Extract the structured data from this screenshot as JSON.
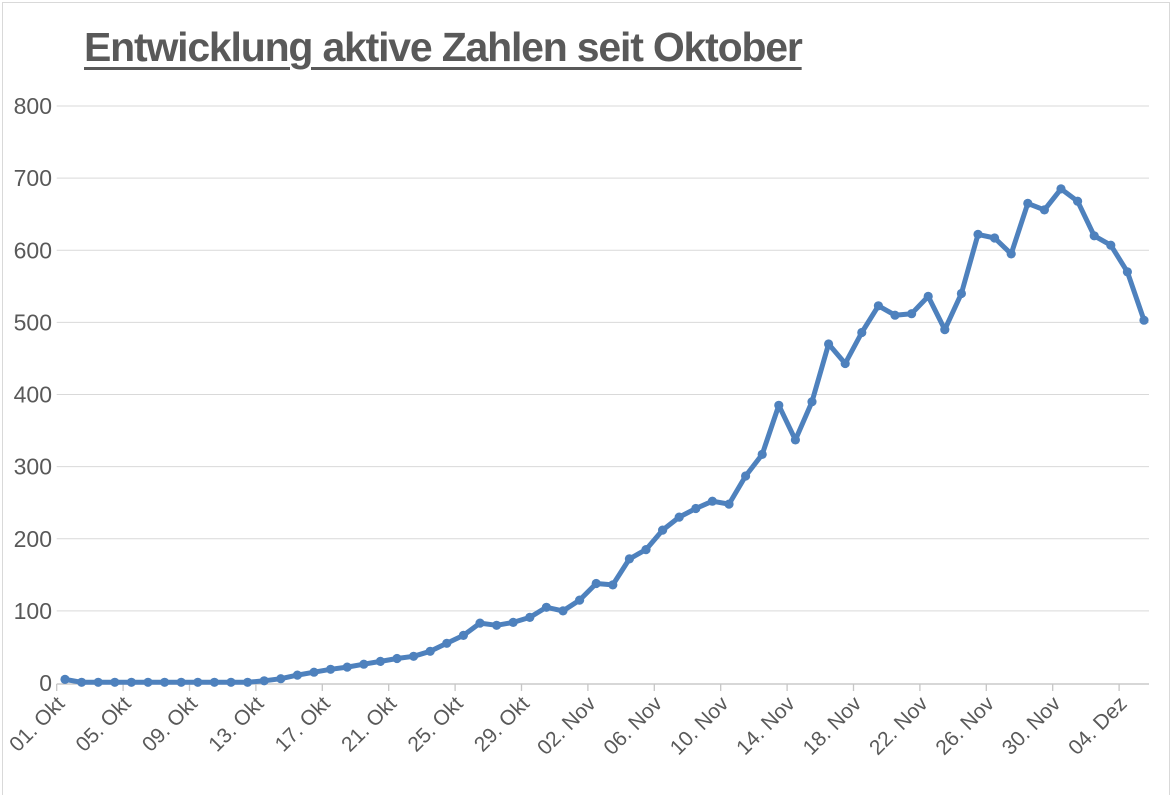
{
  "window": {
    "background": "#ffffff",
    "border_color": "#d9d9d9"
  },
  "chart_data": {
    "type": "line",
    "title": "Entwicklung aktive Zahlen seit Oktober",
    "legend": "none",
    "grid": "horizontal",
    "xlabel": "",
    "ylabel": "",
    "ylim": [
      0,
      800
    ],
    "y_ticks": [
      0,
      100,
      200,
      300,
      400,
      500,
      600,
      700,
      800
    ],
    "x_tick_labels": [
      "01. Okt",
      "05. Okt",
      "09. Okt",
      "13. Okt",
      "17. Okt",
      "21. Okt",
      "25. Okt",
      "29. Okt",
      "02. Nov",
      "06. Nov",
      "10. Nov",
      "14. Nov",
      "18. Nov",
      "22. Nov",
      "26. Nov",
      "30. Nov",
      "04. Dez"
    ],
    "x_tick_indices": [
      0,
      4,
      8,
      12,
      16,
      20,
      24,
      28,
      32,
      36,
      40,
      44,
      48,
      52,
      56,
      60,
      64
    ],
    "dates": [
      "01. Okt",
      "02. Okt",
      "03. Okt",
      "04. Okt",
      "05. Okt",
      "06. Okt",
      "07. Okt",
      "08. Okt",
      "09. Okt",
      "10. Okt",
      "11. Okt",
      "12. Okt",
      "13. Okt",
      "14. Okt",
      "15. Okt",
      "16. Okt",
      "17. Okt",
      "18. Okt",
      "19. Okt",
      "20. Okt",
      "21. Okt",
      "22. Okt",
      "23. Okt",
      "24. Okt",
      "25. Okt",
      "26. Okt",
      "27. Okt",
      "28. Okt",
      "29. Okt",
      "30. Okt",
      "31. Okt",
      "01. Nov",
      "02. Nov",
      "03. Nov",
      "04. Nov",
      "05. Nov",
      "06. Nov",
      "07. Nov",
      "08. Nov",
      "09. Nov",
      "10. Nov",
      "11. Nov",
      "12. Nov",
      "13. Nov",
      "14. Nov",
      "15. Nov",
      "16. Nov",
      "17. Nov",
      "18. Nov",
      "19. Nov",
      "20. Nov",
      "21. Nov",
      "22. Nov",
      "23. Nov",
      "24. Nov",
      "25. Nov",
      "26. Nov",
      "27. Nov",
      "28. Nov",
      "29. Nov",
      "30. Nov",
      "01. Dez",
      "02. Dez",
      "03. Dez",
      "04. Dez",
      "05. Dez"
    ],
    "values": [
      5,
      1,
      1,
      1,
      1,
      1,
      1,
      1,
      1,
      1,
      1,
      1,
      3,
      6,
      11,
      15,
      19,
      22,
      26,
      30,
      34,
      37,
      44,
      55,
      66,
      83,
      80,
      84,
      91,
      105,
      100,
      115,
      138,
      136,
      172,
      185,
      212,
      230,
      242,
      252,
      248,
      287,
      317,
      385,
      337,
      390,
      470,
      443,
      486,
      523,
      510,
      512,
      536,
      490,
      540,
      622,
      617,
      595,
      665,
      656,
      685,
      668,
      620,
      607,
      570,
      503
    ],
    "line_color": "#4e81bd",
    "marker": "circle",
    "marker_color": "#4e81bd",
    "gridline_color": "#d9d9d9",
    "axis_color": "#bfbfbf",
    "tick_color": "#c6c6c6",
    "label_color": "#595959",
    "title_color": "#595959"
  }
}
